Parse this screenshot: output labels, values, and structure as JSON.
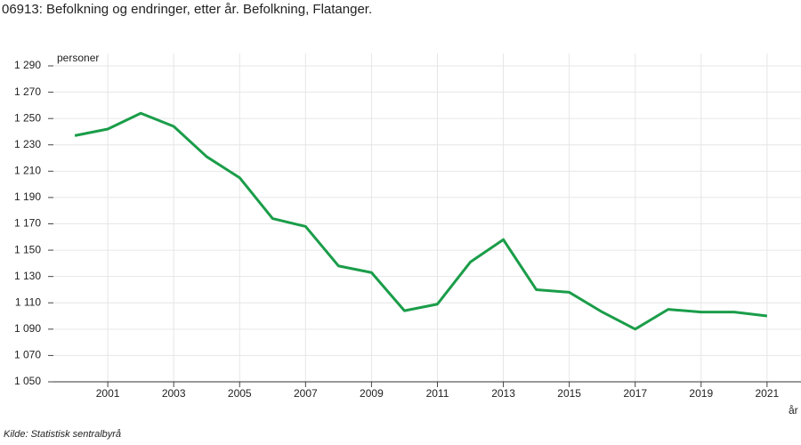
{
  "chart_data": {
    "type": "line",
    "title": "06913: Befolkning og endringer, etter år. Befolkning, Flatanger.",
    "y_label": "personer",
    "x_label": "år",
    "source": "Kilde:  Statistisk sentralbyrå",
    "x": [
      2000,
      2001,
      2002,
      2003,
      2004,
      2005,
      2006,
      2007,
      2008,
      2009,
      2010,
      2011,
      2012,
      2013,
      2014,
      2015,
      2016,
      2017,
      2018,
      2019,
      2020,
      2021
    ],
    "series": [
      {
        "name": "Befolkning",
        "color": "#1a9d49",
        "values": [
          1237,
          1242,
          1254,
          1244,
          1221,
          1205,
          1174,
          1168,
          1138,
          1133,
          1104,
          1109,
          1141,
          1158,
          1120,
          1118,
          1103,
          1090,
          1105,
          1103,
          1103,
          1100
        ]
      }
    ],
    "xlim": [
      1999.35,
      2022.03
    ],
    "xticks": [
      2001,
      2003,
      2005,
      2007,
      2009,
      2011,
      2013,
      2015,
      2017,
      2019,
      2021
    ],
    "ylim": [
      1050,
      1290
    ],
    "yticks": [
      {
        "value": 1050,
        "label": "1 050"
      },
      {
        "value": 1070,
        "label": "1 070"
      },
      {
        "value": 1090,
        "label": "1 090"
      },
      {
        "value": 1110,
        "label": "1 110"
      },
      {
        "value": 1130,
        "label": "1 130"
      },
      {
        "value": 1150,
        "label": "1 150"
      },
      {
        "value": 1170,
        "label": "1 170"
      },
      {
        "value": 1190,
        "label": "1 190"
      },
      {
        "value": 1210,
        "label": "1 210"
      },
      {
        "value": 1230,
        "label": "1 230"
      },
      {
        "value": 1250,
        "label": "1 250"
      },
      {
        "value": 1270,
        "label": "1 270"
      },
      {
        "value": 1290,
        "label": "1 290"
      }
    ],
    "grid": true
  }
}
